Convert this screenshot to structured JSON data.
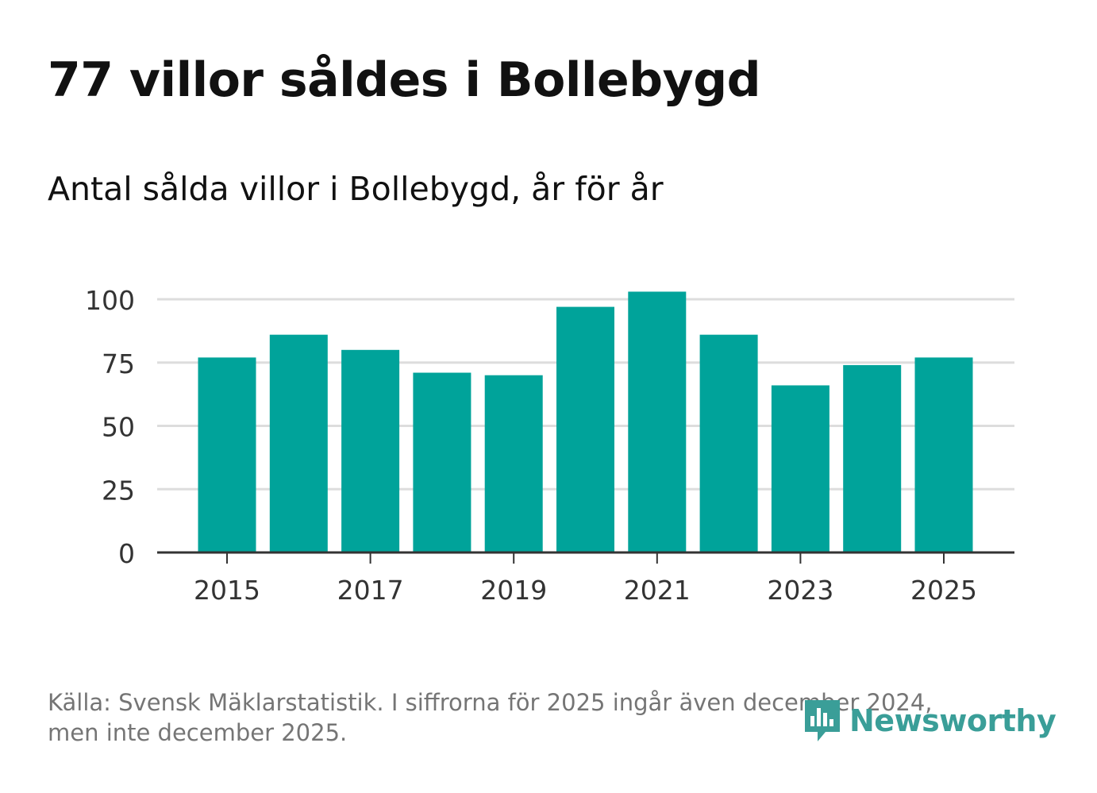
{
  "title": "77 villor såldes i Bollebygd",
  "subtitle": "Antal sålda villor i Bollebygd, år för år",
  "footer": {
    "line1": "Källa: Svensk Mäklarstatistik. I siffrorna för 2025 ingår även december 2024,",
    "line2": "men inte december 2025."
  },
  "logo": {
    "text": "Newsworthy",
    "icon": "newsworthy-logo-icon"
  },
  "colors": {
    "bar": "#00a39a",
    "grid": "#dddddd",
    "axis": "#333333",
    "text": "#333333",
    "brand": "#3a9e98"
  },
  "chart_data": {
    "type": "bar",
    "categories": [
      "2015",
      "2016",
      "2017",
      "2018",
      "2019",
      "2020",
      "2021",
      "2022",
      "2023",
      "2024",
      "2025"
    ],
    "values": [
      77,
      86,
      80,
      71,
      70,
      97,
      103,
      86,
      66,
      74,
      77
    ],
    "x_tick_labels": [
      "2015",
      "2017",
      "2019",
      "2021",
      "2023",
      "2025"
    ],
    "y_ticks": [
      0,
      25,
      50,
      75,
      100
    ],
    "ylim": [
      0,
      110
    ],
    "xlabel": "",
    "ylabel": "",
    "grid": true
  }
}
